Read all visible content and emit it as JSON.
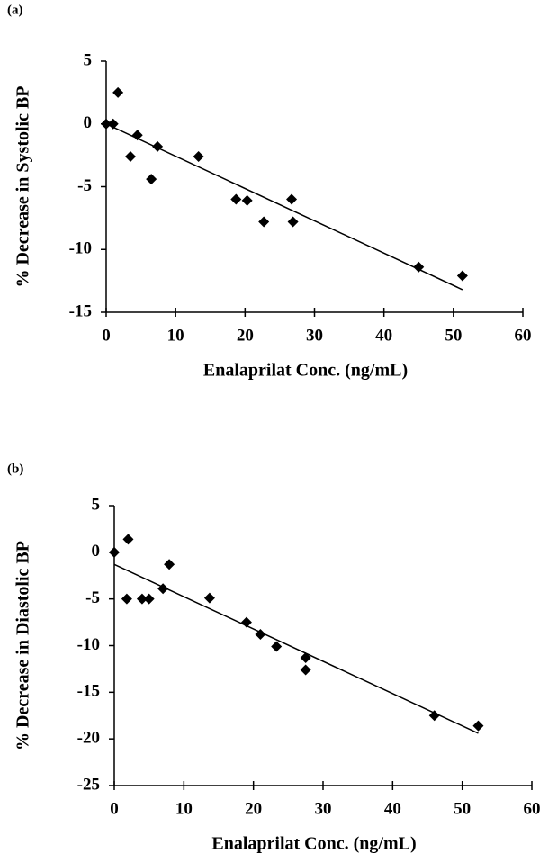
{
  "chart_data": [
    {
      "type": "scatter",
      "panel_label": "(a)",
      "x_label": "Enalaprilat Conc. (ng/mL)",
      "y_label": "% Decrease in Systolic BP",
      "x": [
        0,
        1,
        1.7,
        3.5,
        4.5,
        6.5,
        7.4,
        13.3,
        18.7,
        20.3,
        22.7,
        26.7,
        26.9,
        45,
        51.3
      ],
      "values": [
        0,
        0,
        2.5,
        -2.6,
        -0.9,
        -4.4,
        -1.8,
        -2.6,
        -6.0,
        -6.1,
        -7.8,
        -6.0,
        -7.8,
        -11.4,
        -12.1
      ],
      "trendline": {
        "x": [
          0,
          51.3
        ],
        "y": [
          0,
          -13.2
        ]
      },
      "color": "#000000",
      "xlim": [
        0,
        60
      ],
      "xticks": [
        0,
        10,
        20,
        30,
        40,
        50,
        60
      ],
      "ylim": [
        -15,
        5
      ],
      "yticks": [
        5,
        0,
        -5,
        -10,
        -15
      ]
    },
    {
      "type": "scatter",
      "panel_label": "(b)",
      "x_label": "Enalaprilat Conc. (ng/mL)",
      "y_label": "% Decrease in Diastolic BP",
      "x": [
        0,
        1.8,
        2,
        4,
        5,
        7,
        7.9,
        13.7,
        19,
        21,
        23.3,
        27.5,
        27.5,
        46,
        52.3
      ],
      "values": [
        0,
        -5.0,
        1.4,
        -5.0,
        -5.0,
        -3.9,
        -1.3,
        -4.9,
        -7.5,
        -8.8,
        -10.1,
        -11.3,
        -12.6,
        -17.5,
        -18.6
      ],
      "trendline": {
        "x": [
          0,
          52.3
        ],
        "y": [
          -1.3,
          -19.4
        ]
      },
      "color": "#000000",
      "xlim": [
        0,
        60
      ],
      "xticks": [
        0,
        10,
        20,
        30,
        40,
        50,
        60
      ],
      "ylim": [
        -25,
        5
      ],
      "yticks": [
        5,
        0,
        -5,
        -10,
        -15,
        -20,
        -25
      ]
    }
  ]
}
